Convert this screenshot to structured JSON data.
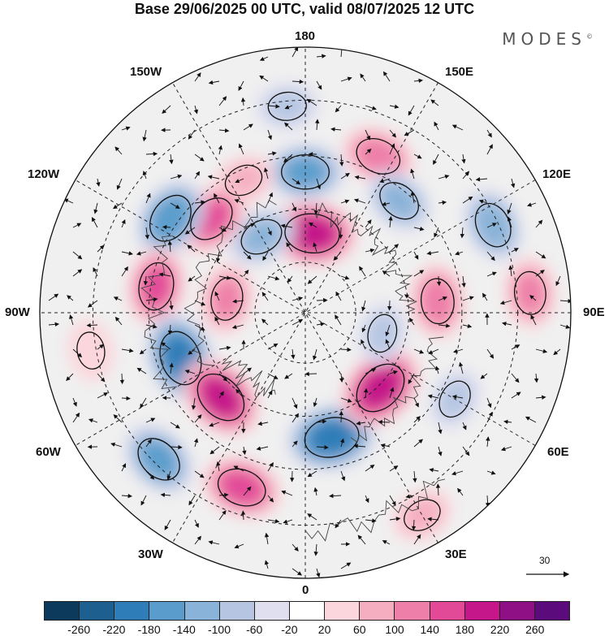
{
  "title": "Base 29/06/2025 00 UTC, valid 08/07/2025 12 UTC",
  "brand": "MODES",
  "brand_mark": "©",
  "longitude_labels": {
    "top": "180",
    "bottom": "0",
    "left": "90W",
    "right": "90E",
    "upper_left_1": "150W",
    "upper_left_2": "120W",
    "lower_left_1": "60W",
    "lower_left_2": "30W",
    "upper_right_1": "150E",
    "upper_right_2": "120E",
    "lower_right_1": "60E",
    "lower_right_2": "30E"
  },
  "reference_vector": {
    "label": "30"
  },
  "colorbar": {
    "colors": [
      "#0c3a5c",
      "#1d5f8e",
      "#2e7db8",
      "#5a9dcc",
      "#89b3d8",
      "#b6c6e2",
      "#dfdff0",
      "#ffffff",
      "#fbd6dc",
      "#f5aec0",
      "#ee7fa8",
      "#e24a98",
      "#c5178a",
      "#8f0f85",
      "#5c0b7d"
    ],
    "ticks": [
      "-260",
      "-220",
      "-180",
      "-140",
      "-100",
      "-60",
      "-20",
      "20",
      "60",
      "100",
      "140",
      "180",
      "220",
      "260"
    ]
  },
  "map": {
    "anomalies": [
      {
        "lon": 180,
        "r": 0.53,
        "value": -140
      },
      {
        "lon": 175,
        "r": 0.3,
        "value": 200
      },
      {
        "lon": 155,
        "r": 0.65,
        "value": 120
      },
      {
        "lon": -155,
        "r": 0.55,
        "value": 60
      },
      {
        "lon": -150,
        "r": 0.33,
        "value": -100
      },
      {
        "lon": -135,
        "r": 0.5,
        "value": 140
      },
      {
        "lon": -125,
        "r": 0.62,
        "value": -160
      },
      {
        "lon": -100,
        "r": 0.57,
        "value": 140
      },
      {
        "lon": -100,
        "r": 0.3,
        "value": 100
      },
      {
        "lon": -70,
        "r": 0.5,
        "value": -200
      },
      {
        "lon": -45,
        "r": 0.45,
        "value": 190
      },
      {
        "lon": -45,
        "r": 0.78,
        "value": -140
      },
      {
        "lon": -20,
        "r": 0.7,
        "value": 150
      },
      {
        "lon": 12,
        "r": 0.48,
        "value": -200
      },
      {
        "lon": 45,
        "r": 0.4,
        "value": 200
      },
      {
        "lon": 60,
        "r": 0.65,
        "value": -60
      },
      {
        "lon": 95,
        "r": 0.85,
        "value": 100
      },
      {
        "lon": 115,
        "r": 0.78,
        "value": -120
      },
      {
        "lon": 95,
        "r": 0.5,
        "value": 120
      },
      {
        "lon": 140,
        "r": 0.55,
        "value": -100
      },
      {
        "lon": 75,
        "r": 0.3,
        "value": -60
      },
      {
        "lon": -175,
        "r": 0.78,
        "value": -60
      },
      {
        "lon": 30,
        "r": 0.88,
        "value": 60
      },
      {
        "lon": -80,
        "r": 0.82,
        "value": 50
      }
    ]
  }
}
